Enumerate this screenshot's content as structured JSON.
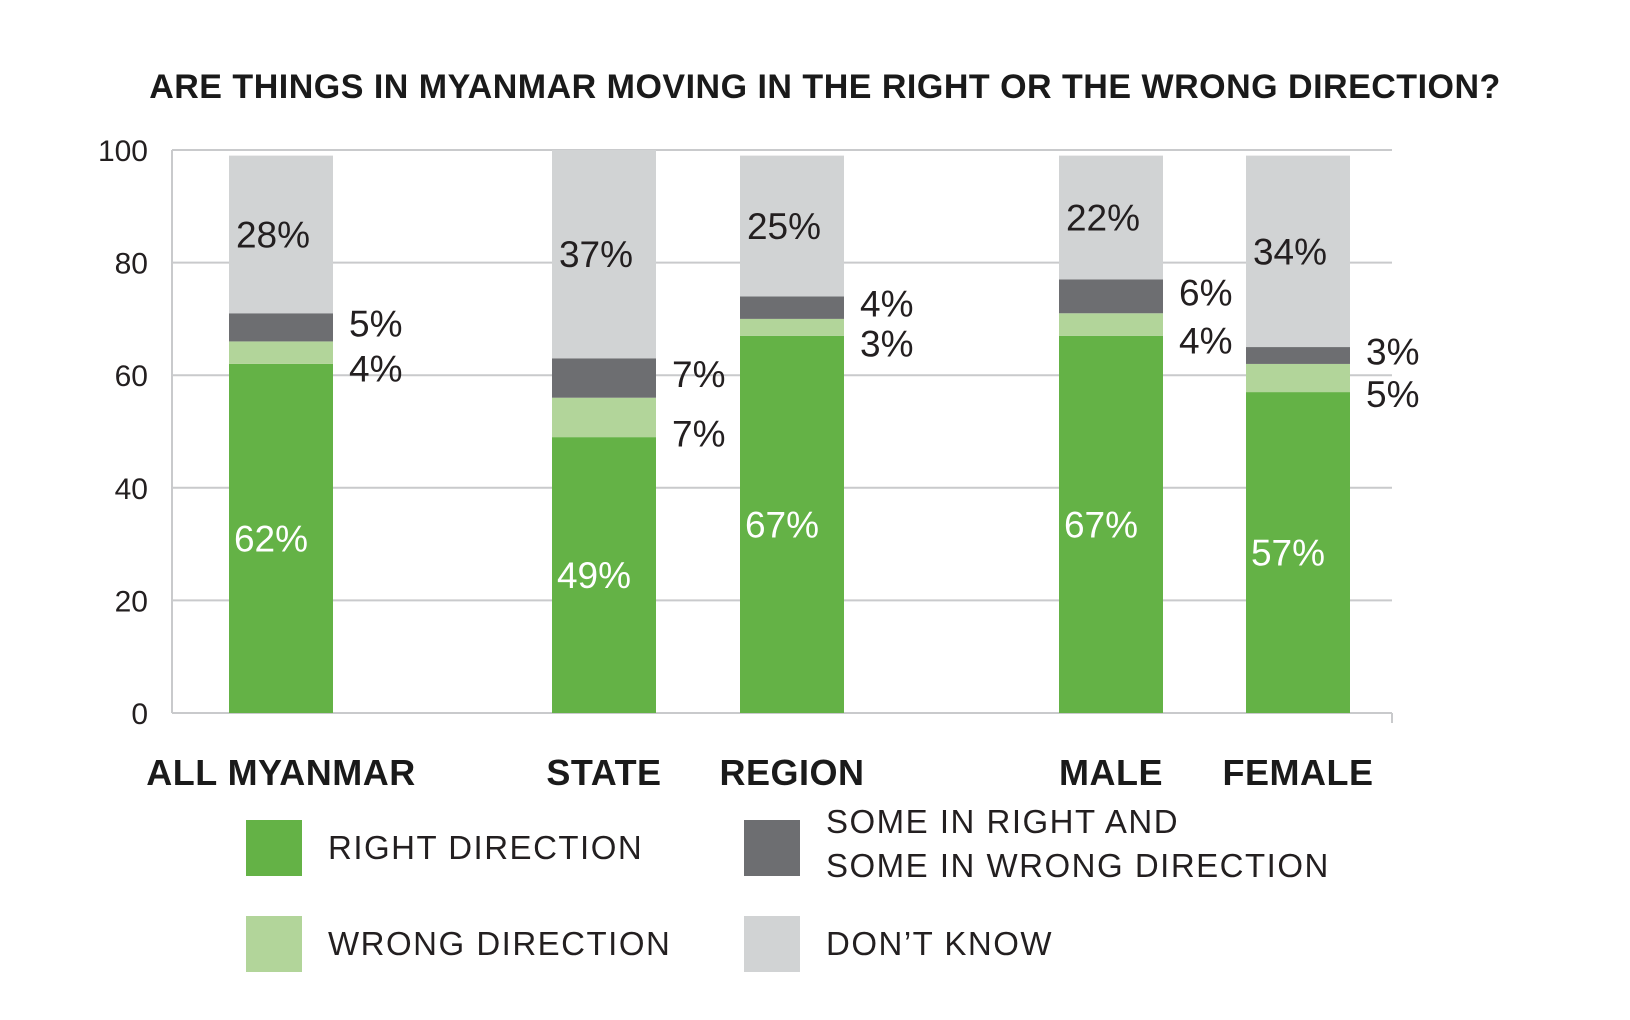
{
  "chart_data": {
    "type": "bar",
    "stacked": true,
    "title": "ARE THINGS IN MYANMAR MOVING IN THE RIGHT OR THE WRONG DIRECTION?",
    "categories": [
      "ALL MYANMAR",
      "STATE",
      "REGION",
      "MALE",
      "FEMALE"
    ],
    "ylim": [
      0,
      100
    ],
    "yticks": [
      0,
      20,
      40,
      60,
      80,
      100
    ],
    "grid": true,
    "legend_position": "bottom",
    "series": [
      {
        "name": "RIGHT DIRECTION",
        "color": "#64b246",
        "values": [
          62,
          49,
          67,
          67,
          57
        ],
        "labels": [
          "62%",
          "49%",
          "67%",
          "67%",
          "57%"
        ]
      },
      {
        "name": "WRONG DIRECTION",
        "color": "#b2d59a",
        "values": [
          4,
          7,
          3,
          4,
          5
        ],
        "labels": [
          "4%",
          "7%",
          "3%",
          "4%",
          "5%"
        ]
      },
      {
        "name": "SOME IN RIGHT AND SOME IN WRONG DIRECTION",
        "name_lines": [
          "SOME IN RIGHT AND",
          "SOME IN WRONG DIRECTION"
        ],
        "color": "#6d6e71",
        "values": [
          5,
          7,
          4,
          6,
          3
        ],
        "labels": [
          "5%",
          "7%",
          "4%",
          "6%",
          "3%"
        ]
      },
      {
        "name": "DON’T KNOW",
        "color": "#d1d3d4",
        "values": [
          28,
          37,
          25,
          22,
          34
        ],
        "labels": [
          "28%",
          "37%",
          "25%",
          "22%",
          "34%"
        ]
      }
    ]
  }
}
